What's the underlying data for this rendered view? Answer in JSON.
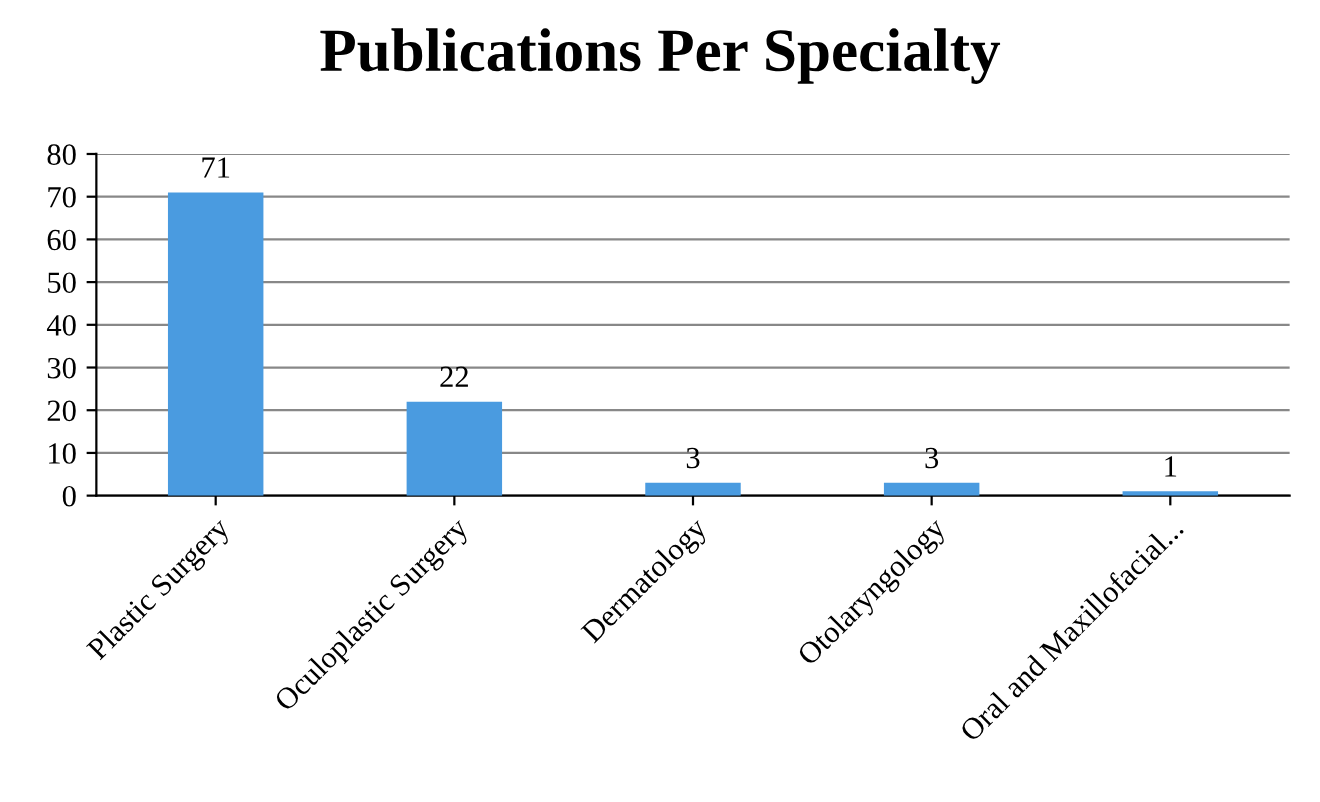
{
  "chart_data": {
    "type": "bar",
    "title": "Publications Per Specialty",
    "categories": [
      "Plastic Surgery",
      "Oculoplastic Surgery",
      "Dermatology",
      "Otolaryngology",
      "Oral and Maxillofacial..."
    ],
    "values": [
      71,
      22,
      3,
      3,
      1
    ],
    "color": "#4a9be0",
    "ylim": [
      0,
      80
    ],
    "yticks": [
      0,
      10,
      20,
      30,
      40,
      50,
      60,
      70,
      80
    ],
    "grid": "y",
    "data_labels": true,
    "legend": false
  }
}
